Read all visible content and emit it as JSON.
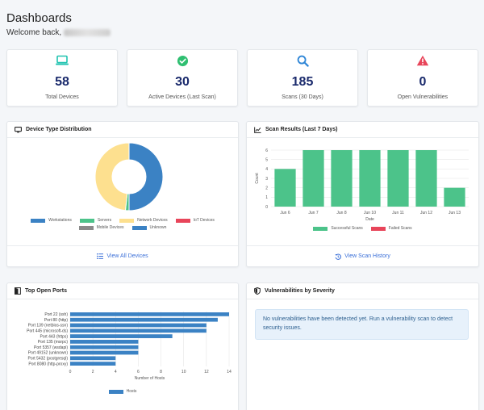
{
  "header": {
    "title": "Dashboards",
    "welcome": "Welcome back,"
  },
  "stats": [
    {
      "value": "58",
      "label": "Total Devices",
      "icon": "laptop-icon",
      "color": "#20c3b0"
    },
    {
      "value": "30",
      "label": "Active Devices (Last Scan)",
      "icon": "check-circle-icon",
      "color": "#2fbf71"
    },
    {
      "value": "185",
      "label": "Scans (30 Days)",
      "icon": "search-icon",
      "color": "#2f86d6"
    },
    {
      "value": "0",
      "label": "Open Vulnerabilities",
      "icon": "warning-icon",
      "color": "#e8455a"
    }
  ],
  "device_card": {
    "title": "Device Type Distribution",
    "footer": "View All Devices",
    "legend": [
      {
        "label": "Workstations",
        "color": "#3b82c4"
      },
      {
        "label": "Servers",
        "color": "#4cc38a"
      },
      {
        "label": "Network Devices",
        "color": "#fde08f"
      },
      {
        "label": "IoT Devices",
        "color": "#e8455a"
      },
      {
        "label": "Mobile Devices",
        "color": "#8a8a8a"
      },
      {
        "label": "Unknown",
        "color": "#3b82c4"
      }
    ]
  },
  "scan_card": {
    "title": "Scan Results (Last 7 Days)",
    "footer": "View Scan History",
    "legend": [
      {
        "label": "Successful Scans",
        "color": "#4cc38a"
      },
      {
        "label": "Failed Scans",
        "color": "#e8455a"
      }
    ]
  },
  "ports_card": {
    "title": "Top Open Ports",
    "legend": [
      {
        "label": "Hosts",
        "color": "#3b82c4"
      }
    ]
  },
  "vuln_card": {
    "title": "Vulnerabilities by Severity",
    "message": "No vulnerabilities have been detected yet. Run a vulnerability scan to detect security issues."
  },
  "chart_data": [
    {
      "type": "pie",
      "title": "Device Type Distribution",
      "categories": [
        "Workstations",
        "Servers",
        "Network Devices",
        "IoT Devices",
        "Mobile Devices",
        "Unknown"
      ],
      "values": [
        29,
        1,
        28,
        0,
        0,
        0
      ],
      "colors": [
        "#3b82c4",
        "#4cc38a",
        "#fde08f",
        "#e8455a",
        "#8a8a8a",
        "#3b82c4"
      ]
    },
    {
      "type": "bar",
      "title": "Scan Results (Last 7 Days)",
      "categories": [
        "Jun 6",
        "Jun 7",
        "Jun 8",
        "Jun 10",
        "Jun 11",
        "Jun 12",
        "Jun 13"
      ],
      "series": [
        {
          "name": "Successful Scans",
          "values": [
            4,
            6,
            6,
            6,
            6,
            6,
            2
          ],
          "color": "#4cc38a"
        },
        {
          "name": "Failed Scans",
          "values": [
            0,
            0,
            0,
            0,
            0,
            0,
            0
          ],
          "color": "#e8455a"
        }
      ],
      "xlabel": "Date",
      "ylabel": "Count",
      "ylim": [
        0,
        6
      ],
      "yticks": [
        0,
        1,
        2,
        3,
        4,
        5,
        6
      ]
    },
    {
      "type": "bar",
      "orientation": "horizontal",
      "title": "Top Open Ports",
      "categories": [
        "Port 22 (ssh)",
        "Port 80 (http)",
        "Port 139 (netbios-ssn)",
        "Port 445 (microsoft-ds)",
        "Port 443 (https)",
        "Port 135 (msrpc)",
        "Port 5357 (wsdapi)",
        "Port 49152 (unknown)",
        "Port 5432 (postgresql)",
        "Port 8080 (http-proxy)"
      ],
      "values": [
        14,
        13,
        12,
        12,
        9,
        6,
        6,
        6,
        4,
        4
      ],
      "series_name": "Hosts",
      "xlabel": "Number of Hosts",
      "xlim": [
        0,
        14
      ],
      "xticks": [
        0,
        2,
        4,
        6,
        8,
        10,
        12,
        14
      ],
      "color": "#3b82c4"
    }
  ]
}
